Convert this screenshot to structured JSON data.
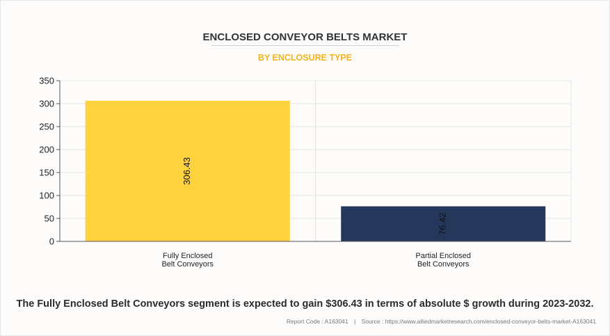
{
  "chart_data": {
    "type": "bar",
    "title": "ENCLOSED CONVEYOR BELTS MARKET",
    "subtitle": "BY ENCLOSURE TYPE",
    "categories": [
      "Fully Enclosed Belt Conveyors",
      "Partial Enclosed Belt Conveyors"
    ],
    "category_lines": [
      [
        "Fully Enclosed",
        "Belt Conveyors"
      ],
      [
        "Partial Enclosed",
        "Belt Conveyors"
      ]
    ],
    "values": [
      306.43,
      76.42
    ],
    "data_labels": [
      "306.43",
      "76.42"
    ],
    "bar_colors": [
      "#fed23d",
      "#25375a"
    ],
    "ylim": [
      0,
      350
    ],
    "yticks": [
      0,
      50,
      100,
      150,
      200,
      250,
      300,
      350
    ],
    "grid": true,
    "xlabel": "",
    "ylabel": ""
  },
  "headline": "The Fully Enclosed Belt Conveyors segment is expected to gain $306.43 in terms of absolute $ growth during 2023-2032.",
  "footer": {
    "report_code": "Report Code : A163041",
    "separator": "|",
    "source": "Source : https://www.alliedmarketresearch.com/enclosed-conveyor-belts-market-A163041"
  }
}
